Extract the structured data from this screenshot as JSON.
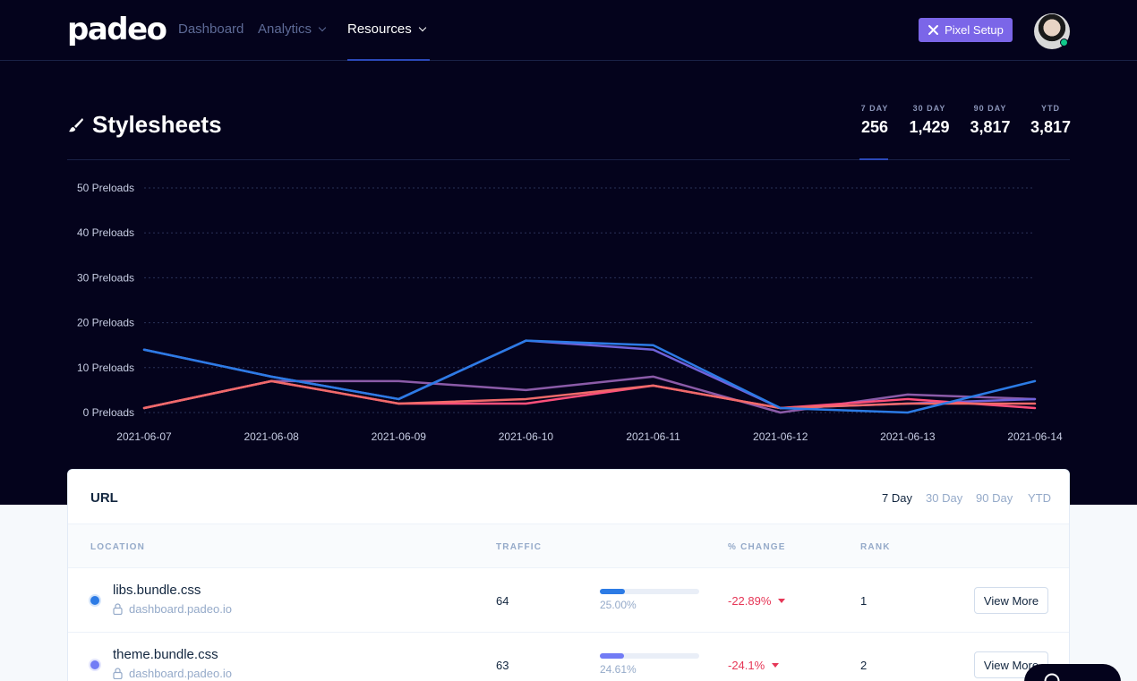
{
  "nav": {
    "logo": "padeo",
    "links": [
      {
        "label": "Dashboard"
      },
      {
        "label": "Analytics"
      },
      {
        "label": "Resources"
      }
    ],
    "pixel_button": "Pixel Setup"
  },
  "header": {
    "title": "Stylesheets",
    "stats": [
      {
        "label": "7 DAY",
        "value": "256"
      },
      {
        "label": "30 DAY",
        "value": "1,429"
      },
      {
        "label": "90 DAY",
        "value": "3,817"
      },
      {
        "label": "YTD",
        "value": "3,817"
      }
    ]
  },
  "chart_data": {
    "type": "line",
    "x": [
      "2021-06-07",
      "2021-06-08",
      "2021-06-09",
      "2021-06-10",
      "2021-06-11",
      "2021-06-12",
      "2021-06-13",
      "2021-06-14"
    ],
    "y_ticks": [
      "0 Preloads",
      "10 Preloads",
      "20 Preloads",
      "30 Preloads",
      "40 Preloads",
      "50 Preloads"
    ],
    "ylim": [
      0,
      50
    ],
    "grid": true,
    "series": [
      {
        "color": "#8b5ba8",
        "values": [
          1,
          7,
          7,
          5,
          8,
          0,
          4,
          3
        ]
      },
      {
        "color": "#6f62d9",
        "values": [
          14,
          8,
          3,
          16,
          14,
          1,
          2,
          3
        ]
      },
      {
        "color": "#ff4f7b",
        "values": [
          1,
          7,
          2,
          2,
          6,
          1,
          3,
          1
        ]
      },
      {
        "color": "#f06a6a",
        "values": [
          1,
          7,
          2,
          3,
          6,
          1,
          2,
          2
        ]
      },
      {
        "color": "#2c7be5",
        "values": [
          14,
          8,
          3,
          16,
          15,
          1,
          0,
          7
        ]
      }
    ]
  },
  "table": {
    "title": "URL",
    "tabs": [
      "7 Day",
      "30 Day",
      "90 Day",
      "YTD"
    ],
    "columns": [
      "LOCATION",
      "TRAFFIC",
      "% CHANGE",
      "RANK"
    ],
    "rows": [
      {
        "name": "libs.bundle.css",
        "domain": "dashboard.padeo.io",
        "traffic": "64",
        "share_label": "25.00%",
        "share": 0.25,
        "change": "-22.89%",
        "rank": "1",
        "action": "View More",
        "color": "#2c7be5"
      },
      {
        "name": "theme.bundle.css",
        "domain": "dashboard.padeo.io",
        "traffic": "63",
        "share_label": "24.61%",
        "share": 0.2461,
        "change": "-24.1%",
        "rank": "2",
        "action": "View More",
        "color": "#727cf5"
      }
    ]
  }
}
